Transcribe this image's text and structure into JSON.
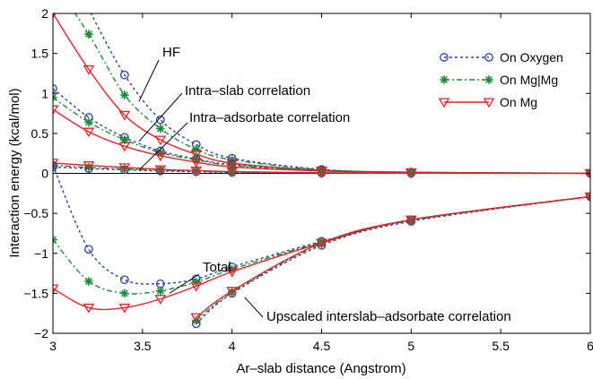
{
  "chart_data": {
    "type": "line",
    "xlabel": "Ar–slab distance (Angstrom)",
    "ylabel": "Interaction energy (kcal/mol)",
    "xlim": [
      3,
      6
    ],
    "ylim": [
      -2,
      2
    ],
    "x_ticks": [
      3,
      3.5,
      4,
      4.5,
      5,
      5.5,
      6
    ],
    "x_tick_labels": [
      "3",
      "3.5",
      "4",
      "4.5",
      "5",
      "5.5",
      "6"
    ],
    "y_ticks": [
      -2,
      -1.5,
      -1,
      -0.5,
      0,
      0.5,
      1,
      1.5,
      2
    ],
    "y_tick_labels": [
      "−2",
      "−1.5",
      "−1",
      "−0.5",
      "0",
      "0.5",
      "1",
      "1.5",
      "2"
    ],
    "grid": false,
    "legend": {
      "placement": "top-right",
      "entries": [
        {
          "label": "On Oxygen",
          "series_key": "oxygen"
        },
        {
          "label": "On Mg|Mg",
          "series_key": "mgmg"
        },
        {
          "label": "On Mg",
          "series_key": "mg"
        }
      ]
    },
    "styles": {
      "oxygen": {
        "color": "#2a3fa6",
        "dash": "3,3",
        "marker": "circle"
      },
      "mgmg": {
        "color": "#1a8a3a",
        "dash": "6,3,2,3",
        "marker": "star"
      },
      "mg": {
        "color": "#e0242b",
        "dash": "",
        "marker": "triangle-down"
      }
    },
    "groups": [
      {
        "name": "HF",
        "series": [
          {
            "key": "oxygen",
            "x": [
              3,
              3.2,
              3.4,
              3.6,
              3.8,
              4,
              4.5,
              5,
              6
            ],
            "y": [
              2.9,
              2.05,
              1.23,
              0.67,
              0.36,
              0.19,
              0.05,
              0.015,
              0.001
            ]
          },
          {
            "key": "mgmg",
            "x": [
              3,
              3.2,
              3.4,
              3.6,
              3.8,
              4,
              4.5,
              5,
              6
            ],
            "y": [
              2.4,
              1.74,
              0.98,
              0.56,
              0.3,
              0.17,
              0.045,
              0.012,
              0.001
            ]
          },
          {
            "key": "mg",
            "x": [
              3,
              3.2,
              3.4,
              3.6,
              3.8,
              4,
              4.5,
              5,
              6
            ],
            "y": [
              2.0,
              1.3,
              0.73,
              0.42,
              0.24,
              0.13,
              0.035,
              0.01,
              0.001
            ]
          }
        ]
      },
      {
        "name": "Intra-slab correlation",
        "series": [
          {
            "key": "oxygen",
            "x": [
              3,
              3.2,
              3.4,
              3.6,
              3.8,
              4,
              4.5,
              5,
              6
            ],
            "y": [
              1.06,
              0.7,
              0.45,
              0.28,
              0.18,
              0.11,
              0.04,
              0.015,
              0.002
            ]
          },
          {
            "key": "mgmg",
            "x": [
              3,
              3.2,
              3.4,
              3.6,
              3.8,
              4,
              4.5,
              5,
              6
            ],
            "y": [
              0.95,
              0.64,
              0.42,
              0.26,
              0.17,
              0.1,
              0.035,
              0.013,
              0.002
            ]
          },
          {
            "key": "mg",
            "x": [
              3,
              3.2,
              3.4,
              3.6,
              3.8,
              4,
              4.5,
              5,
              6
            ],
            "y": [
              0.8,
              0.52,
              0.34,
              0.22,
              0.14,
              0.08,
              0.03,
              0.01,
              0.002
            ]
          }
        ]
      },
      {
        "name": "Intra-adsorbate correlation",
        "series": [
          {
            "key": "oxygen",
            "x": [
              3,
              3.2,
              3.4,
              3.6,
              3.8,
              4,
              4.5,
              5,
              6
            ],
            "y": [
              0.08,
              0.06,
              0.045,
              0.03,
              0.02,
              0.013,
              0.005,
              0.002,
              0.0
            ]
          },
          {
            "key": "mgmg",
            "x": [
              3,
              3.2,
              3.4,
              3.6,
              3.8,
              4,
              4.5,
              5,
              6
            ],
            "y": [
              0.1,
              0.075,
              0.055,
              0.04,
              0.027,
              0.017,
              0.006,
              0.002,
              0.0
            ]
          },
          {
            "key": "mg",
            "x": [
              3,
              3.2,
              3.4,
              3.6,
              3.8,
              4,
              4.5,
              5,
              6
            ],
            "y": [
              0.13,
              0.1,
              0.075,
              0.05,
              0.035,
              0.022,
              0.008,
              0.003,
              0.0
            ]
          }
        ]
      },
      {
        "name": "Total",
        "series": [
          {
            "key": "oxygen",
            "x": [
              3,
              3.2,
              3.4,
              3.6,
              3.8,
              4,
              4.5,
              5,
              6
            ],
            "y": [
              0.1,
              -0.95,
              -1.33,
              -1.38,
              -1.32,
              -1.17,
              -0.85,
              -0.58,
              -0.29
            ]
          },
          {
            "key": "mgmg",
            "x": [
              3,
              3.2,
              3.4,
              3.6,
              3.8,
              4,
              4.5,
              5,
              6
            ],
            "y": [
              -0.83,
              -1.35,
              -1.5,
              -1.47,
              -1.36,
              -1.2,
              -0.86,
              -0.58,
              -0.29
            ]
          },
          {
            "key": "mg",
            "x": [
              3,
              3.2,
              3.4,
              3.6,
              3.8,
              4,
              4.5,
              5,
              6
            ],
            "y": [
              -1.44,
              -1.68,
              -1.68,
              -1.57,
              -1.41,
              -1.23,
              -0.87,
              -0.58,
              -0.29
            ]
          }
        ]
      },
      {
        "name": "Upscaled interslab-adsorbate correlation",
        "series": [
          {
            "key": "oxygen",
            "x": [
              3.8,
              4,
              4.5,
              5,
              6
            ],
            "y": [
              -1.88,
              -1.5,
              -0.9,
              -0.6,
              -0.29
            ]
          },
          {
            "key": "mgmg",
            "x": [
              3.8,
              4,
              4.5,
              5,
              6
            ],
            "y": [
              -1.84,
              -1.49,
              -0.88,
              -0.59,
              -0.29
            ]
          },
          {
            "key": "mg",
            "x": [
              3.8,
              4,
              4.5,
              5,
              6
            ],
            "y": [
              -1.8,
              -1.47,
              -0.87,
              -0.58,
              -0.29
            ]
          }
        ]
      }
    ],
    "annotations": [
      {
        "text": "HF",
        "target_x": 3.48,
        "target_y": 0.9
      },
      {
        "text": "Intra–slab correlation",
        "target_x": 3.48,
        "target_y": 0.4
      },
      {
        "text": "Intra–adsorbate correlation",
        "target_x": 3.48,
        "target_y": 0.04
      },
      {
        "text": "Total",
        "target_x": 3.65,
        "target_y": -1.5
      },
      {
        "text": "Upscaled interslab–adsorbate correlation",
        "target_x": 4.07,
        "target_y": -1.55
      }
    ]
  }
}
